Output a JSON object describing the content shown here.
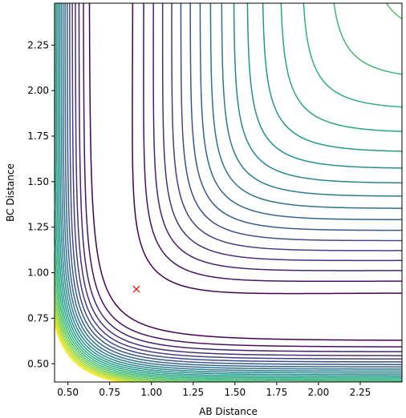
{
  "chart_data": {
    "type": "contour",
    "title": "",
    "xlabel": "AB Distance",
    "ylabel": "BC Distance",
    "xlim": [
      0.42,
      2.5
    ],
    "ylim": [
      0.4,
      2.48
    ],
    "xticks": [
      0.5,
      0.75,
      1.0,
      1.25,
      1.5,
      1.75,
      2.0,
      2.25
    ],
    "xtick_labels": [
      "0.50",
      "0.75",
      "1.00",
      "1.25",
      "1.50",
      "1.75",
      "2.00",
      "2.25"
    ],
    "yticks": [
      0.5,
      0.75,
      1.0,
      1.25,
      1.5,
      1.75,
      2.0,
      2.25
    ],
    "ytick_labels": [
      "0.50",
      "0.75",
      "1.00",
      "1.25",
      "1.50",
      "1.75",
      "2.00",
      "2.25"
    ],
    "colormap": "viridis",
    "grid": false,
    "contour_levels": [
      -4.45,
      -4.2,
      -3.95,
      -3.7,
      -3.45,
      -3.2,
      -2.95,
      -2.7,
      -2.45,
      -2.2,
      -1.95,
      -1.7,
      -1.45,
      -1.2,
      -0.95,
      -0.7,
      -0.45,
      -0.2,
      0.05,
      0.3,
      0.55,
      0.8,
      1.05
    ],
    "marker": {
      "symbol": "x",
      "color": "#ff0000",
      "x": 0.91,
      "y": 0.91
    }
  }
}
